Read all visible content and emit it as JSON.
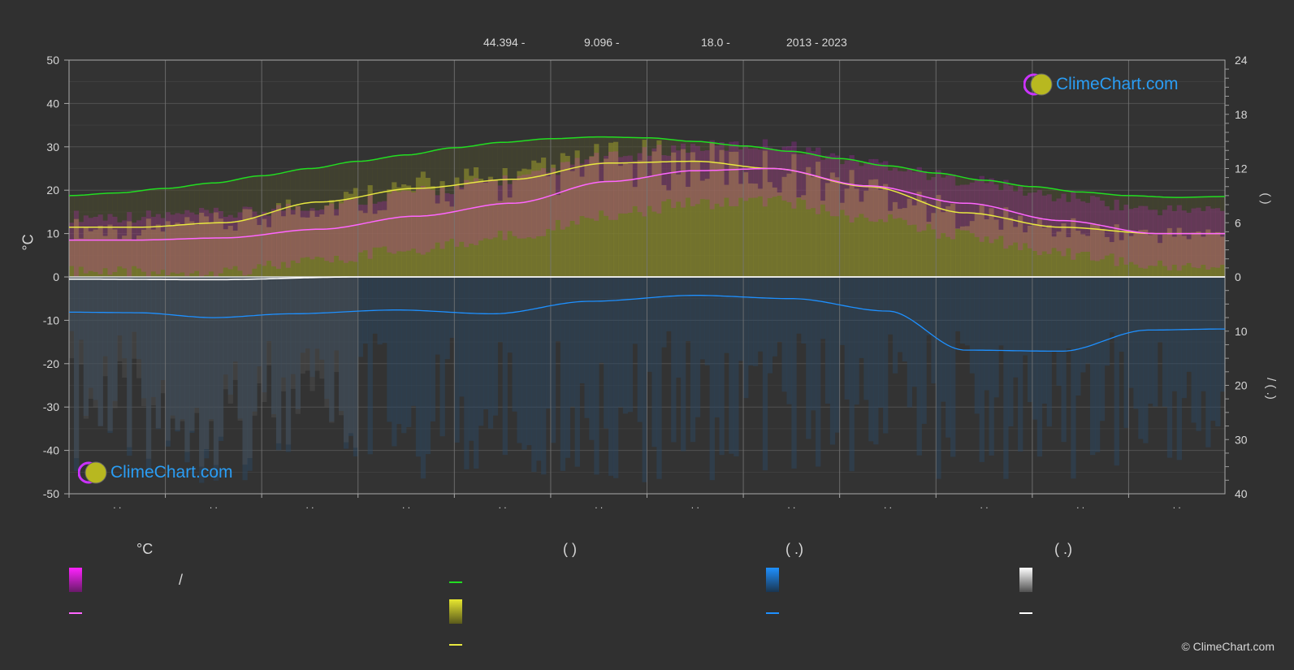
{
  "header": {
    "lat": "44.394 -",
    "lon": "9.096 -",
    "elev": "18.0 -",
    "years": "2013 - 2023"
  },
  "axes": {
    "left_unit": "°C",
    "right_top_label": "(   )",
    "right_bottom_label": "/     (  .)"
  },
  "brand": {
    "text": "ClimeChart.com",
    "copyright": "© ClimeChart.com"
  },
  "legend": {
    "col1_title": "°C",
    "col2_title": "(          )",
    "col3_title": "(   .)",
    "col4_title": "(   .)",
    "slash": "/"
  },
  "colors": {
    "background": "#303030",
    "daylight": "#22dd22",
    "sunshine": "#e8e840",
    "temp_mean": "#ff66ff",
    "temp_band": "#dd22dd",
    "precip": "#1e90ff",
    "snow": "#ffffff",
    "grid": "#555555"
  },
  "chart_data": {
    "type": "line",
    "x": [
      0,
      1,
      2,
      3,
      4,
      5,
      6,
      7,
      8,
      9,
      10,
      11,
      12
    ],
    "xlim": [
      0,
      12
    ],
    "ylim_left": [
      -50,
      50
    ],
    "y_ticks_left": [
      50,
      40,
      30,
      20,
      10,
      0,
      -10,
      -20,
      -30,
      -40,
      -50
    ],
    "ylim_right_top": [
      0,
      24
    ],
    "y_ticks_right_top": [
      24,
      18,
      12,
      6,
      0
    ],
    "ylim_right_bottom": [
      0,
      40
    ],
    "y_ticks_right_bottom": [
      10,
      20,
      30,
      40
    ],
    "x_tick_labels": [
      ". .",
      ". .",
      ". .",
      ". .",
      ". .",
      ". .",
      ". .",
      ". .",
      ". .",
      ". .",
      ". .",
      ". ."
    ],
    "series": [
      {
        "key": "daylight",
        "axis": "hours",
        "x": [
          0,
          0.5,
          1,
          1.5,
          2,
          2.5,
          3,
          3.5,
          4,
          4.5,
          5,
          5.5,
          6,
          6.5,
          7,
          7.5,
          8,
          8.5,
          9,
          9.5,
          10,
          10.5,
          11,
          11.5,
          12
        ],
        "values": [
          9.0,
          9.3,
          9.8,
          10.4,
          11.2,
          12.0,
          12.8,
          13.5,
          14.3,
          14.9,
          15.3,
          15.5,
          15.4,
          15.0,
          14.5,
          13.9,
          13.1,
          12.3,
          11.5,
          10.7,
          10.0,
          9.4,
          9.0,
          8.8,
          8.9
        ]
      },
      {
        "key": "sunshine",
        "axis": "hours",
        "x": [
          0,
          0.7,
          1.6,
          2.6,
          3.6,
          4.6,
          5.6,
          6.5,
          7.3,
          8.3,
          9.3,
          10.3,
          11.3,
          12
        ],
        "values": [
          5.5,
          5.5,
          6.0,
          8.3,
          9.8,
          10.8,
          12.6,
          12.8,
          12.0,
          10.0,
          7.1,
          5.5,
          4.8,
          4.8
        ]
      },
      {
        "key": "temp_mean",
        "axis": "temp",
        "x": [
          0,
          0.7,
          1.6,
          2.6,
          3.6,
          4.6,
          5.6,
          6.5,
          7.3,
          8.3,
          9.3,
          10.3,
          11.3,
          12
        ],
        "values": [
          8.5,
          8.5,
          9.0,
          11.0,
          14.0,
          17.0,
          22.0,
          24.5,
          25.0,
          21.0,
          17.0,
          13.0,
          10.0,
          10.0
        ]
      },
      {
        "key": "precip",
        "axis": "precip",
        "x": [
          0,
          0.7,
          1.5,
          2.3,
          3.4,
          4.4,
          5.4,
          6.5,
          7.5,
          8.5,
          9.3,
          10.3,
          11.2,
          12
        ],
        "values": [
          6.5,
          6.6,
          7.5,
          6.8,
          6.1,
          6.8,
          4.5,
          3.4,
          4.0,
          6.3,
          13.5,
          13.7,
          9.8,
          9.6
        ]
      },
      {
        "key": "snow",
        "axis": "precip",
        "x": [
          0,
          1.5,
          3,
          12
        ],
        "values": [
          0.4,
          0.5,
          0.0,
          0.0
        ]
      }
    ]
  }
}
